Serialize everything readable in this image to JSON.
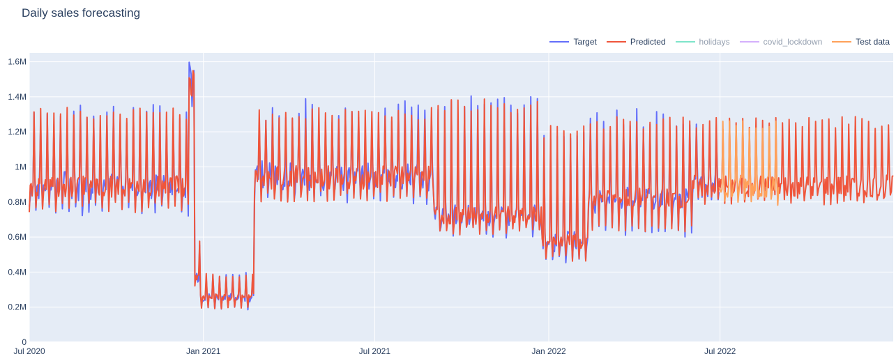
{
  "chart_data": {
    "type": "line",
    "title": "Daily sales forecasting",
    "xlabel": "",
    "ylabel": "",
    "x_range": [
      "2020-07-01",
      "2022-12-31"
    ],
    "ylim": [
      0,
      1650000
    ],
    "grid": true,
    "legend_placement": "top-right",
    "x_ticks": [
      {
        "date": "2020-07-01",
        "label": "Jul 2020"
      },
      {
        "date": "2021-01-01",
        "label": "Jan 2021"
      },
      {
        "date": "2021-07-01",
        "label": "Jul 2021"
      },
      {
        "date": "2022-01-01",
        "label": "Jan 2022"
      },
      {
        "date": "2022-07-01",
        "label": "Jul 2022"
      }
    ],
    "y_ticks": [
      {
        "value": 0,
        "label": "0"
      },
      {
        "value": 200000,
        "label": "0.2M"
      },
      {
        "value": 400000,
        "label": "0.4M"
      },
      {
        "value": 600000,
        "label": "0.6M"
      },
      {
        "value": 800000,
        "label": "0.8M"
      },
      {
        "value": 1000000,
        "label": "1M"
      },
      {
        "value": 1200000,
        "label": "1.2M"
      },
      {
        "value": 1400000,
        "label": "1.4M"
      },
      {
        "value": 1600000,
        "label": "1.6M"
      }
    ],
    "series": [
      {
        "name": "Target",
        "color": "#636efa",
        "visible": true,
        "start": "2020-07-01",
        "end": "2022-06-30"
      },
      {
        "name": "Predicted",
        "color": "#ef553b",
        "visible": true,
        "start": "2020-07-01",
        "end": "2022-12-31"
      },
      {
        "name": "holidays",
        "color": "#00cc96",
        "visible": false
      },
      {
        "name": "covid_lockdown",
        "color": "#ab63fa",
        "visible": false
      },
      {
        "name": "Test data",
        "color": "#ffa15a",
        "visible": true,
        "start": "2022-06-30",
        "end": "2022-09-01"
      }
    ],
    "segments": [
      {
        "start": "2020-07-01",
        "end": "2020-12-15",
        "base": 900000,
        "peak": 1300000,
        "trough": 740000,
        "note_peak_rises_to": 1400000
      },
      {
        "start": "2020-12-15",
        "end": "2020-12-21",
        "base": 1480000,
        "peak": 1530000,
        "trough": 870000
      },
      {
        "start": "2020-12-22",
        "end": "2020-12-27",
        "base": 380000,
        "peak": 580000,
        "trough": 320000
      },
      {
        "start": "2020-12-28",
        "end": "2021-02-22",
        "base": 260000,
        "peak": 380000,
        "trough": 190000
      },
      {
        "start": "2021-02-23",
        "end": "2021-08-31",
        "base": 950000,
        "peak": 1300000,
        "trough": 800000
      },
      {
        "start": "2021-09-01",
        "end": "2021-12-23",
        "base": 730000,
        "peak": 1350000,
        "trough": 610000
      },
      {
        "start": "2021-12-24",
        "end": "2022-02-10",
        "base": 580000,
        "peak": 1200000,
        "trough": 460000
      },
      {
        "start": "2022-02-11",
        "end": "2022-05-31",
        "base": 830000,
        "peak": 1250000,
        "trough": 620000
      },
      {
        "start": "2022-06-01",
        "end": "2022-12-31",
        "base": 900000,
        "peak": 1250000,
        "trough": 780000
      }
    ]
  },
  "legend": {
    "target": "Target",
    "predicted": "Predicted",
    "holidays": "holidays",
    "covid_lockdown": "covid_lockdown",
    "test_data": "Test data"
  },
  "colors": {
    "plot_bg": "#e5ecf6",
    "grid": "#ffffff",
    "text": "#2a3f5f"
  }
}
